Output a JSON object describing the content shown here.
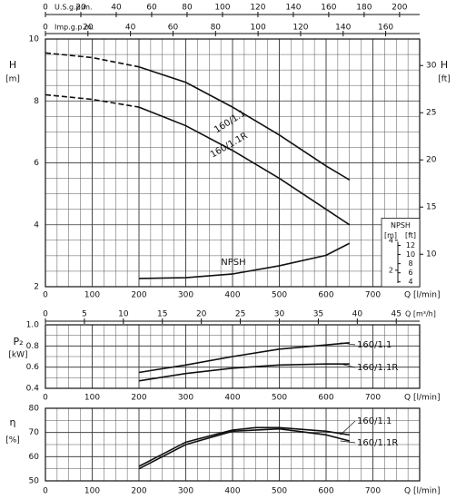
{
  "chart_data": [
    {
      "type": "line",
      "y_label": "H",
      "y_unit": "[m]",
      "y2_label": "H",
      "y2_unit": "[ft]",
      "x_label": "Q [l/min]",
      "xlim": [
        0,
        800
      ],
      "xticks": [
        0,
        100,
        200,
        300,
        400,
        500,
        600,
        700
      ],
      "ylim": [
        2,
        10
      ],
      "yticks": [
        2,
        4,
        6,
        8,
        10
      ],
      "y2lim": [
        6.56,
        32.81
      ],
      "y2ticks": [
        10,
        15,
        20,
        25,
        30
      ],
      "y3lim": [
        0.9,
        17.45
      ],
      "y3ticks": [
        2,
        4
      ],
      "y4lim": [
        2.95,
        57.25
      ],
      "y4ticks": [
        4,
        6,
        8,
        10,
        12
      ],
      "npsh_box": {
        "title": "NPSH",
        "m_unit": "[m]",
        "ft_unit": "[ft]"
      },
      "extra_x_axes": [
        {
          "label": "U.S.g.p.m.",
          "lim": [
            0,
            211.35
          ],
          "ticks": [
            0,
            20,
            40,
            60,
            80,
            100,
            120,
            140,
            160,
            180,
            200
          ]
        },
        {
          "label": "Imp.g.p.m.",
          "lim": [
            0,
            175.98
          ],
          "ticks": [
            0,
            20,
            40,
            60,
            80,
            100,
            120,
            140,
            160
          ]
        },
        {
          "label": "Q [m³/h]",
          "lim": [
            0,
            48
          ],
          "ticks": [
            0,
            5,
            10,
            15,
            20,
            25,
            30,
            35,
            40,
            45
          ]
        }
      ],
      "grid": true,
      "minor_x_divisions": 4,
      "minor_y_divisions": 4,
      "series": [
        {
          "name": "160/1.1",
          "color": "#111111",
          "dashed_range": [
            0,
            200
          ],
          "x": [
            0,
            100,
            200,
            300,
            400,
            500,
            600,
            650
          ],
          "values": [
            9.55,
            9.4,
            9.1,
            8.6,
            7.8,
            6.9,
            5.9,
            5.45
          ]
        },
        {
          "name": "160/1.1R",
          "color": "#111111",
          "dashed_range": [
            0,
            200
          ],
          "x": [
            0,
            100,
            200,
            300,
            400,
            500,
            600,
            650
          ],
          "values": [
            8.2,
            8.05,
            7.8,
            7.2,
            6.4,
            5.5,
            4.5,
            4.0
          ]
        },
        {
          "name": "NPSH",
          "color": "#111111",
          "axis": "y3",
          "x": [
            200,
            300,
            400,
            500,
            600,
            650
          ],
          "values": [
            1.45,
            1.5,
            1.75,
            2.3,
            3.0,
            3.8
          ]
        }
      ]
    },
    {
      "type": "line",
      "y_label": "P₂",
      "y_unit": "[kW]",
      "x_label": "Q [l/min]",
      "xlim": [
        0,
        800
      ],
      "xticks": [
        0,
        100,
        200,
        300,
        400,
        500,
        600,
        700
      ],
      "ylim": [
        0.4,
        1.0
      ],
      "yticks": [
        0.4,
        0.6,
        0.8,
        {
          "value": 1.0,
          "label": "1.0"
        }
      ],
      "grid": true,
      "minor_x_divisions": 4,
      "minor_y_divisions": 2,
      "series": [
        {
          "name": "160/1.1",
          "color": "#111111",
          "x": [
            200,
            300,
            400,
            500,
            600,
            650
          ],
          "values": [
            0.55,
            0.62,
            0.7,
            0.77,
            0.81,
            0.83
          ]
        },
        {
          "name": "160/1.1R",
          "color": "#111111",
          "x": [
            200,
            300,
            400,
            500,
            600,
            650
          ],
          "values": [
            0.47,
            0.54,
            0.59,
            0.62,
            0.63,
            0.63
          ]
        }
      ]
    },
    {
      "type": "line",
      "y_label": "η",
      "y_unit": "[%]",
      "x_label": "Q [l/min]",
      "xlim": [
        0,
        800
      ],
      "xticks": [
        0,
        100,
        200,
        300,
        400,
        500,
        600,
        700
      ],
      "ylim": [
        50,
        80
      ],
      "yticks": [
        50,
        60,
        70,
        80
      ],
      "grid": true,
      "minor_x_divisions": 4,
      "minor_y_divisions": 2,
      "series": [
        {
          "name": "160/1.1",
          "color": "#111111",
          "x": [
            200,
            300,
            400,
            450,
            500,
            600,
            650
          ],
          "values": [
            56,
            66,
            71,
            72,
            72,
            70.5,
            69
          ]
        },
        {
          "name": "160/1.1R",
          "color": "#111111",
          "x": [
            200,
            300,
            400,
            500,
            600,
            650
          ],
          "values": [
            55,
            65,
            70.5,
            71.5,
            69,
            66.5
          ]
        }
      ]
    }
  ]
}
